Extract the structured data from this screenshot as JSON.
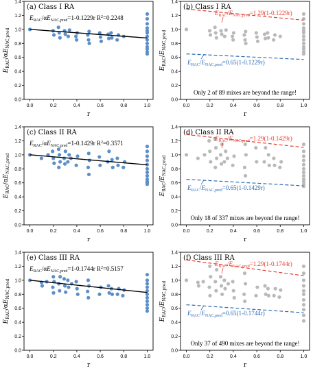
{
  "colors": {
    "blue": "#5b8fc9",
    "gray": "#b9b9b9",
    "red": "#e63c2e",
    "dashblue": "#2e6bb5",
    "black": "#000000"
  },
  "chart_data": [
    {
      "id": "a",
      "type": "scatter",
      "title": "(a) Class I RA",
      "equation": "E_RAC/αE_NAC,pred=1-0.1229r R²=0.2248",
      "eq_parts": {
        "lhs": "/α",
        "rhs": "=1-0.1229r R",
        "tail": "=0.2248"
      },
      "xlabel": "r",
      "ylabel": "E_RAC/αE_NAC,pred",
      "xlim": [
        0,
        1
      ],
      "ylim": [
        0,
        1.4
      ],
      "xticks": [
        "0.0",
        "0.2",
        "0.4",
        "0.6",
        "0.8",
        "1.0"
      ],
      "yticks": [
        "0.0",
        "0.2",
        "0.4",
        "0.6",
        "0.8",
        "1.0",
        "1.2",
        "1.4"
      ],
      "fit": {
        "intercept": 1,
        "slope": -0.1229
      },
      "points": {
        "x": [
          0.0,
          0.2,
          0.2,
          0.25,
          0.25,
          0.25,
          0.3,
          0.3,
          0.33,
          0.33,
          0.4,
          0.4,
          0.4,
          0.5,
          0.5,
          0.5,
          0.5,
          0.6,
          0.6,
          0.6,
          0.67,
          0.67,
          0.7,
          0.7,
          0.75,
          0.75,
          0.8,
          1.0,
          1.0,
          1.0,
          1.0,
          1.0,
          1.0,
          1.0,
          1.0,
          1.0,
          1.0,
          1.0,
          1.0,
          1.0
        ],
        "y": [
          1.0,
          0.98,
          0.92,
          1.03,
          0.95,
          0.88,
          0.98,
          0.93,
          0.99,
          0.9,
          0.95,
          0.9,
          0.85,
          0.97,
          0.92,
          0.85,
          0.8,
          0.95,
          0.89,
          0.83,
          0.93,
          0.87,
          0.95,
          0.88,
          0.92,
          0.85,
          0.9,
          1.22,
          1.15,
          1.08,
          1.02,
          0.98,
          0.95,
          0.9,
          0.85,
          0.8,
          0.75,
          0.72,
          0.68,
          0.65
        ]
      }
    },
    {
      "id": "b",
      "type": "scatter",
      "title": "(b) Class I RA",
      "upper_label": {
        "parts": [
          "/",
          "=1.29(1-0.1229r)"
        ]
      },
      "lower_label": {
        "parts": [
          "/",
          "=0.65(1-0.1229r)"
        ]
      },
      "note": "Only 2 of 89 mixes are beyond the range!",
      "xlabel": "r",
      "ylabel": "E_RAC/E_NAC,pred",
      "xlim": [
        0,
        1
      ],
      "ylim": [
        0,
        1.4
      ],
      "xticks": [
        "0.0",
        "0.2",
        "0.4",
        "0.6",
        "0.8",
        "1.0"
      ],
      "yticks": [
        "0.0",
        "0.2",
        "0.4",
        "0.6",
        "0.8",
        "1.0",
        "1.2",
        "1.4"
      ],
      "upper": {
        "factor": 1.29,
        "slope": -0.1229
      },
      "lower": {
        "factor": 0.65,
        "slope": -0.1229
      },
      "points": {
        "x": [
          0.0,
          0.2,
          0.2,
          0.25,
          0.25,
          0.25,
          0.3,
          0.3,
          0.33,
          0.33,
          0.4,
          0.4,
          0.4,
          0.5,
          0.5,
          0.5,
          0.5,
          0.6,
          0.6,
          0.6,
          0.67,
          0.67,
          0.7,
          0.7,
          0.75,
          0.75,
          0.8,
          1.0,
          1.0,
          1.0,
          1.0,
          1.0,
          1.0,
          1.0,
          1.0,
          1.0,
          1.0,
          1.0,
          1.0,
          1.0
        ],
        "y": [
          1.0,
          0.98,
          0.92,
          1.03,
          0.95,
          0.88,
          0.98,
          0.93,
          0.99,
          0.9,
          0.95,
          0.9,
          0.85,
          0.97,
          0.92,
          0.85,
          0.8,
          0.95,
          0.89,
          0.83,
          0.93,
          0.87,
          0.95,
          0.88,
          0.92,
          0.85,
          0.9,
          1.22,
          1.15,
          1.08,
          1.02,
          0.98,
          0.95,
          0.9,
          0.85,
          0.8,
          0.75,
          0.72,
          0.68,
          0.65
        ]
      }
    },
    {
      "id": "c",
      "type": "scatter",
      "title": "(c) Class II RA",
      "equation": "E_RAC/αE_NAC,pred=1-0.1429r R²=0.3571",
      "eq_parts": {
        "lhs": "/α",
        "rhs": "=1-0.1429r R",
        "tail": "=0.3571"
      },
      "xlabel": "r",
      "ylabel": "E_RAC/αE_NAC,pred",
      "xlim": [
        0,
        1
      ],
      "ylim": [
        0,
        1.4
      ],
      "xticks": [
        "0.0",
        "0.2",
        "0.4",
        "0.6",
        "0.8",
        "1.0"
      ],
      "yticks": [
        "0.0",
        "0.2",
        "0.4",
        "0.6",
        "0.8",
        "1.0",
        "1.2",
        "1.4"
      ],
      "fit": {
        "intercept": 1,
        "slope": -0.1429
      },
      "points": {
        "x": [
          0.0,
          0.1,
          0.15,
          0.2,
          0.2,
          0.2,
          0.25,
          0.25,
          0.25,
          0.25,
          0.3,
          0.3,
          0.3,
          0.33,
          0.33,
          0.35,
          0.4,
          0.4,
          0.5,
          0.5,
          0.5,
          0.5,
          0.6,
          0.6,
          0.67,
          0.67,
          0.7,
          0.7,
          0.75,
          0.75,
          0.8,
          0.8,
          1.0,
          1.0,
          1.0,
          1.0,
          1.0,
          1.0,
          1.0,
          1.0,
          1.0,
          1.0,
          1.0,
          1.0
        ],
        "y": [
          1.0,
          0.95,
          1.0,
          1.05,
          0.95,
          0.88,
          1.08,
          1.0,
          0.9,
          0.82,
          1.05,
          0.95,
          0.87,
          1.0,
          0.9,
          0.95,
          0.98,
          0.85,
          1.02,
          0.92,
          0.82,
          0.72,
          0.97,
          0.85,
          1.05,
          0.9,
          0.93,
          0.82,
          0.95,
          0.85,
          0.9,
          0.82,
          1.12,
          1.05,
          0.98,
          0.92,
          0.86,
          0.8,
          0.75,
          0.7,
          0.65,
          0.62,
          0.6,
          0.58
        ]
      }
    },
    {
      "id": "d",
      "type": "scatter",
      "title": "(d) Class II RA",
      "upper_label": {
        "parts": [
          "/",
          "=1.29(1-0.1429r)"
        ]
      },
      "lower_label": {
        "parts": [
          "/",
          "=0.65(1-0.1429r)"
        ]
      },
      "note": "Only 18 of 337 mixes are beyond the range!",
      "xlabel": "r",
      "ylabel": "E_RAC/E_NAC,pred",
      "xlim": [
        0,
        1
      ],
      "ylim": [
        0,
        1.4
      ],
      "xticks": [
        "0.0",
        "0.2",
        "0.4",
        "0.6",
        "0.8",
        "1.0"
      ],
      "yticks": [
        "0.0",
        "0.2",
        "0.4",
        "0.6",
        "0.8",
        "1.0",
        "1.2",
        "1.4"
      ],
      "upper": {
        "factor": 1.29,
        "slope": -0.1429
      },
      "lower": {
        "factor": 0.65,
        "slope": -0.1429
      },
      "points": {
        "x": [
          0.0,
          0.1,
          0.15,
          0.2,
          0.2,
          0.2,
          0.25,
          0.25,
          0.25,
          0.25,
          0.3,
          0.3,
          0.3,
          0.33,
          0.33,
          0.35,
          0.4,
          0.4,
          0.5,
          0.5,
          0.5,
          0.5,
          0.6,
          0.6,
          0.67,
          0.67,
          0.7,
          0.7,
          0.75,
          0.75,
          0.8,
          0.8,
          1.0,
          1.0,
          1.0,
          1.0,
          1.0,
          1.0,
          1.0,
          1.0,
          1.0,
          1.0,
          1.0,
          1.0
        ],
        "y": [
          1.0,
          0.95,
          1.0,
          1.2,
          1.05,
          0.9,
          1.22,
          1.1,
          0.95,
          0.82,
          1.15,
          1.0,
          0.87,
          1.05,
          0.9,
          0.95,
          0.98,
          0.85,
          1.15,
          1.0,
          0.82,
          0.7,
          1.1,
          0.9,
          1.1,
          0.9,
          1.0,
          0.85,
          0.95,
          0.85,
          0.9,
          0.82,
          1.15,
          1.05,
          0.98,
          0.92,
          0.86,
          0.8,
          0.75,
          0.7,
          0.65,
          0.62,
          0.58,
          0.55
        ]
      }
    },
    {
      "id": "e",
      "type": "scatter",
      "title": "(e) Class III RA",
      "equation": "E_RAC/αE_NAC,pred=1-0.1744r R²=0.5157",
      "eq_parts": {
        "lhs": "/α",
        "rhs": "=1-0.1744r R",
        "tail": "=0.5157"
      },
      "xlabel": "r",
      "ylabel": "E_RAC/αE_NAC,pred",
      "xlim": [
        0,
        1
      ],
      "ylim": [
        0,
        1.4
      ],
      "xticks": [
        "0.0",
        "0.2",
        "0.4",
        "0.6",
        "0.8",
        "1.0"
      ],
      "yticks": [
        "0.0",
        "0.2",
        "0.4",
        "0.6",
        "0.8",
        "1.0",
        "1.2",
        "1.4"
      ],
      "fit": {
        "intercept": 1,
        "slope": -0.1744
      },
      "points": {
        "x": [
          0.0,
          0.1,
          0.1,
          0.15,
          0.2,
          0.2,
          0.2,
          0.2,
          0.25,
          0.25,
          0.25,
          0.3,
          0.3,
          0.3,
          0.33,
          0.33,
          0.35,
          0.4,
          0.4,
          0.4,
          0.5,
          0.5,
          0.5,
          0.5,
          0.6,
          0.6,
          0.67,
          0.67,
          0.7,
          0.7,
          0.75,
          0.75,
          0.8,
          0.8,
          1.0,
          1.0,
          1.0,
          1.0,
          1.0,
          1.0,
          1.0,
          1.0,
          1.0,
          1.0,
          1.0
        ],
        "y": [
          1.0,
          0.97,
          0.92,
          0.98,
          1.05,
          0.98,
          0.9,
          0.82,
          1.05,
          0.95,
          0.85,
          1.02,
          0.92,
          0.83,
          1.0,
          0.9,
          0.95,
          0.98,
          0.88,
          0.8,
          1.0,
          0.92,
          0.84,
          0.75,
          0.9,
          0.8,
          0.92,
          0.82,
          0.88,
          0.8,
          0.88,
          0.8,
          0.86,
          0.78,
          1.08,
          1.0,
          0.95,
          0.9,
          0.85,
          0.8,
          0.75,
          0.7,
          0.65,
          0.6,
          0.56
        ]
      }
    },
    {
      "id": "f",
      "type": "scatter",
      "title": "(f) Class III RA",
      "upper_label": {
        "parts": [
          "/",
          "=1.29(1-0.1744r)"
        ]
      },
      "lower_label": {
        "parts": [
          "/",
          "=0.65(1-0.1744r)"
        ]
      },
      "note": "Only 37 of 490 mixes are beyond the range!",
      "xlabel": "r",
      "ylabel": "E_RAC/E_NAC,pred",
      "xlim": [
        0,
        1
      ],
      "ylim": [
        0,
        1.4
      ],
      "xticks": [
        "0.0",
        "0.2",
        "0.4",
        "0.6",
        "0.8",
        "1.0"
      ],
      "yticks": [
        "0.0",
        "0.2",
        "0.4",
        "0.6",
        "0.8",
        "1.0",
        "1.2",
        "1.4"
      ],
      "upper": {
        "factor": 1.29,
        "slope": -0.1744
      },
      "lower": {
        "factor": 0.65,
        "slope": -0.1744
      },
      "points": {
        "x": [
          0.0,
          0.1,
          0.1,
          0.15,
          0.2,
          0.2,
          0.2,
          0.2,
          0.25,
          0.25,
          0.25,
          0.3,
          0.3,
          0.3,
          0.33,
          0.33,
          0.35,
          0.4,
          0.4,
          0.4,
          0.5,
          0.5,
          0.5,
          0.5,
          0.6,
          0.6,
          0.67,
          0.67,
          0.7,
          0.7,
          0.75,
          0.75,
          0.8,
          0.8,
          1.0,
          1.0,
          1.0,
          1.0,
          1.0,
          1.0,
          1.0,
          1.0,
          1.0,
          1.0,
          1.0
        ],
        "y": [
          1.0,
          0.97,
          0.92,
          0.98,
          1.2,
          1.05,
          0.9,
          0.78,
          1.15,
          0.98,
          0.85,
          1.05,
          0.92,
          0.8,
          1.0,
          0.88,
          0.95,
          0.98,
          0.85,
          0.75,
          1.1,
          0.95,
          0.8,
          0.7,
          0.9,
          0.78,
          0.92,
          0.8,
          0.88,
          0.78,
          0.88,
          0.78,
          0.86,
          0.76,
          1.2,
          1.1,
          1.0,
          0.92,
          0.85,
          0.8,
          0.72,
          0.65,
          0.58,
          0.5,
          0.42
        ]
      }
    }
  ]
}
